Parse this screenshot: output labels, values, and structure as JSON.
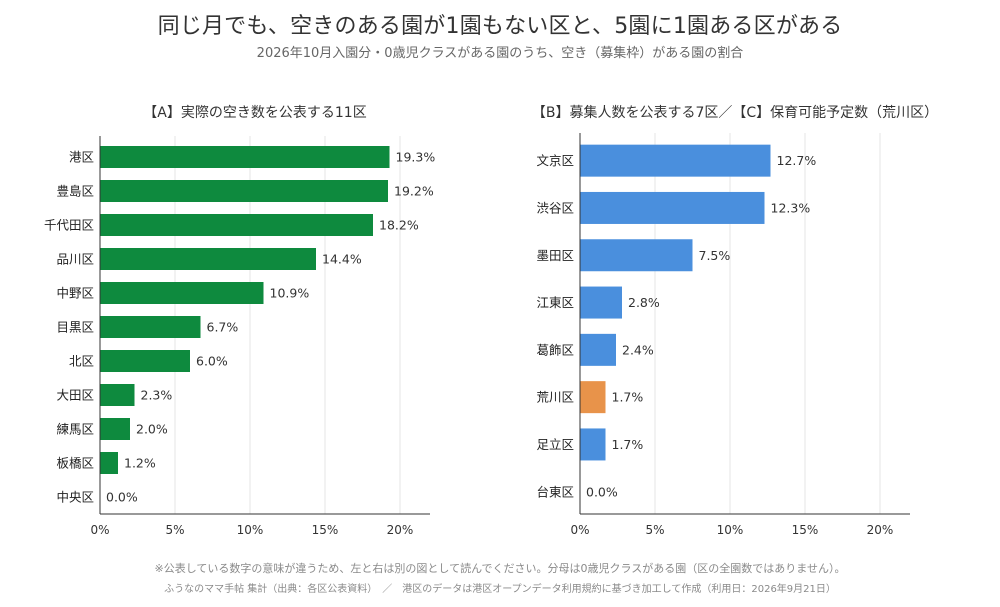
{
  "title": "同じ月でも、空きのある園が1園もない区と、5園に1園ある区がある",
  "subtitle": "2026年10月入園分・0歳児クラスがある園のうち、空き（募集枠）がある園の割合",
  "footnote": "※公表している数字の意味が違うため、左と右は別の図として読んでください。分母は0歳児クラスがある園（区の全園数ではありません）。",
  "source": "ふうなのママ手帖 集計（出典：各区公表資料）　／　港区のデータは港区オープンデータ利用規約に基づき加工して作成（利用日：2026年9月21日）",
  "colors": {
    "green": "#0e8a3e",
    "blue": "#4a8fdd",
    "orange": "#e8934a",
    "grid": "#e6e6e6",
    "axis": "#333333"
  },
  "chart_data": [
    {
      "type": "bar",
      "orientation": "horizontal",
      "title": "【A】実際の空き数を公表する11区",
      "categories": [
        "港区",
        "豊島区",
        "千代田区",
        "品川区",
        "中野区",
        "目黒区",
        "北区",
        "大田区",
        "練馬区",
        "板橋区",
        "中央区"
      ],
      "values": [
        19.3,
        19.2,
        18.2,
        14.4,
        10.9,
        6.7,
        6.0,
        2.3,
        2.0,
        1.2,
        0.0
      ],
      "value_labels": [
        "19.3%",
        "19.2%",
        "18.2%",
        "14.4%",
        "10.9%",
        "6.7%",
        "6.0%",
        "2.3%",
        "2.0%",
        "1.2%",
        "0.0%"
      ],
      "bar_colors": [
        "green",
        "green",
        "green",
        "green",
        "green",
        "green",
        "green",
        "green",
        "green",
        "green",
        "green"
      ],
      "xlim": [
        0,
        22
      ],
      "xticks": [
        0,
        5,
        10,
        15,
        20
      ],
      "xtick_labels": [
        "0%",
        "5%",
        "10%",
        "15%",
        "20%"
      ],
      "grid": true
    },
    {
      "type": "bar",
      "orientation": "horizontal",
      "title": "【B】募集人数を公表する7区／【C】保育可能予定数（荒川区）",
      "categories": [
        "文京区",
        "渋谷区",
        "墨田区",
        "江東区",
        "葛飾区",
        "荒川区",
        "足立区",
        "台東区"
      ],
      "values": [
        12.7,
        12.3,
        7.5,
        2.8,
        2.4,
        1.7,
        1.7,
        0.0
      ],
      "value_labels": [
        "12.7%",
        "12.3%",
        "7.5%",
        "2.8%",
        "2.4%",
        "1.7%",
        "1.7%",
        "0.0%"
      ],
      "bar_colors": [
        "blue",
        "blue",
        "blue",
        "blue",
        "blue",
        "orange",
        "blue",
        "blue"
      ],
      "xlim": [
        0,
        22
      ],
      "xticks": [
        0,
        5,
        10,
        15,
        20
      ],
      "xtick_labels": [
        "0%",
        "5%",
        "10%",
        "15%",
        "20%"
      ],
      "grid": true
    }
  ]
}
